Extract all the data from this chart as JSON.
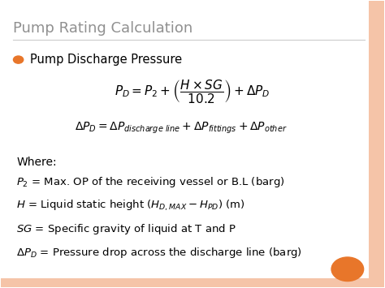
{
  "title": "Pump Rating Calculation",
  "title_color": "#909090",
  "background_color": "#ffffff",
  "bullet_color": "#e8762a",
  "bullet_label": "Pump Discharge Pressure",
  "formula1": "$P_D = P_2 + \\left(\\dfrac{H \\times SG}{10.2}\\right) + \\Delta P_D$",
  "formula2": "$\\Delta P_D = \\Delta P_{discharge\\ line} + \\Delta P_{fittings} + \\Delta P_{other}$",
  "where_text": "Where:",
  "lines": [
    "$P_2$ = Max. OP of the receiving vessel or B.L (barg)",
    "$H$ = Liquid static height ($H_{D,MAX} - H_{PD}$) (m)",
    "$SG$ = Specific gravity of liquid at T and P",
    "$\\Delta P_D$ = Pressure drop across the discharge line (barg)"
  ],
  "orange_circle_color": "#e8762a",
  "border_color": "#f5c4a8",
  "figsize": [
    4.74,
    3.55
  ],
  "dpi": 100
}
